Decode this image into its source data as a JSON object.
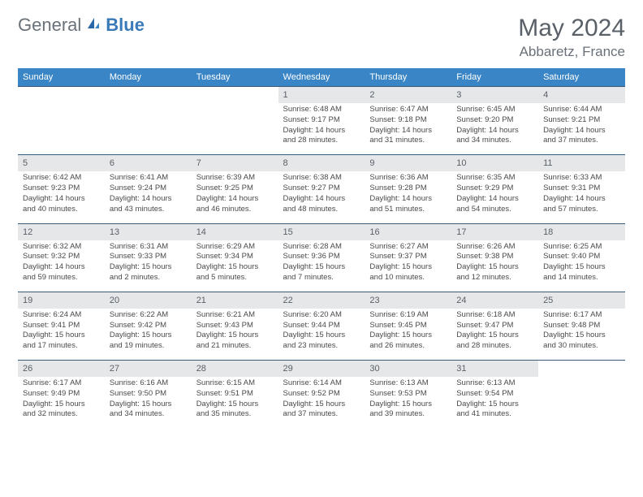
{
  "logo": {
    "general": "General",
    "blue": "Blue"
  },
  "title": "May 2024",
  "location": "Abbaretz, France",
  "daynames": [
    "Sunday",
    "Monday",
    "Tuesday",
    "Wednesday",
    "Thursday",
    "Friday",
    "Saturday"
  ],
  "rows": [
    {
      "nums": [
        "",
        "",
        "",
        "1",
        "2",
        "3",
        "4"
      ],
      "cells": [
        {},
        {},
        {},
        {
          "sr": "Sunrise: 6:48 AM",
          "ss": "Sunset: 9:17 PM",
          "d1": "Daylight: 14 hours",
          "d2": "and 28 minutes."
        },
        {
          "sr": "Sunrise: 6:47 AM",
          "ss": "Sunset: 9:18 PM",
          "d1": "Daylight: 14 hours",
          "d2": "and 31 minutes."
        },
        {
          "sr": "Sunrise: 6:45 AM",
          "ss": "Sunset: 9:20 PM",
          "d1": "Daylight: 14 hours",
          "d2": "and 34 minutes."
        },
        {
          "sr": "Sunrise: 6:44 AM",
          "ss": "Sunset: 9:21 PM",
          "d1": "Daylight: 14 hours",
          "d2": "and 37 minutes."
        }
      ]
    },
    {
      "nums": [
        "5",
        "6",
        "7",
        "8",
        "9",
        "10",
        "11"
      ],
      "cells": [
        {
          "sr": "Sunrise: 6:42 AM",
          "ss": "Sunset: 9:23 PM",
          "d1": "Daylight: 14 hours",
          "d2": "and 40 minutes."
        },
        {
          "sr": "Sunrise: 6:41 AM",
          "ss": "Sunset: 9:24 PM",
          "d1": "Daylight: 14 hours",
          "d2": "and 43 minutes."
        },
        {
          "sr": "Sunrise: 6:39 AM",
          "ss": "Sunset: 9:25 PM",
          "d1": "Daylight: 14 hours",
          "d2": "and 46 minutes."
        },
        {
          "sr": "Sunrise: 6:38 AM",
          "ss": "Sunset: 9:27 PM",
          "d1": "Daylight: 14 hours",
          "d2": "and 48 minutes."
        },
        {
          "sr": "Sunrise: 6:36 AM",
          "ss": "Sunset: 9:28 PM",
          "d1": "Daylight: 14 hours",
          "d2": "and 51 minutes."
        },
        {
          "sr": "Sunrise: 6:35 AM",
          "ss": "Sunset: 9:29 PM",
          "d1": "Daylight: 14 hours",
          "d2": "and 54 minutes."
        },
        {
          "sr": "Sunrise: 6:33 AM",
          "ss": "Sunset: 9:31 PM",
          "d1": "Daylight: 14 hours",
          "d2": "and 57 minutes."
        }
      ]
    },
    {
      "nums": [
        "12",
        "13",
        "14",
        "15",
        "16",
        "17",
        "18"
      ],
      "cells": [
        {
          "sr": "Sunrise: 6:32 AM",
          "ss": "Sunset: 9:32 PM",
          "d1": "Daylight: 14 hours",
          "d2": "and 59 minutes."
        },
        {
          "sr": "Sunrise: 6:31 AM",
          "ss": "Sunset: 9:33 PM",
          "d1": "Daylight: 15 hours",
          "d2": "and 2 minutes."
        },
        {
          "sr": "Sunrise: 6:29 AM",
          "ss": "Sunset: 9:34 PM",
          "d1": "Daylight: 15 hours",
          "d2": "and 5 minutes."
        },
        {
          "sr": "Sunrise: 6:28 AM",
          "ss": "Sunset: 9:36 PM",
          "d1": "Daylight: 15 hours",
          "d2": "and 7 minutes."
        },
        {
          "sr": "Sunrise: 6:27 AM",
          "ss": "Sunset: 9:37 PM",
          "d1": "Daylight: 15 hours",
          "d2": "and 10 minutes."
        },
        {
          "sr": "Sunrise: 6:26 AM",
          "ss": "Sunset: 9:38 PM",
          "d1": "Daylight: 15 hours",
          "d2": "and 12 minutes."
        },
        {
          "sr": "Sunrise: 6:25 AM",
          "ss": "Sunset: 9:40 PM",
          "d1": "Daylight: 15 hours",
          "d2": "and 14 minutes."
        }
      ]
    },
    {
      "nums": [
        "19",
        "20",
        "21",
        "22",
        "23",
        "24",
        "25"
      ],
      "cells": [
        {
          "sr": "Sunrise: 6:24 AM",
          "ss": "Sunset: 9:41 PM",
          "d1": "Daylight: 15 hours",
          "d2": "and 17 minutes."
        },
        {
          "sr": "Sunrise: 6:22 AM",
          "ss": "Sunset: 9:42 PM",
          "d1": "Daylight: 15 hours",
          "d2": "and 19 minutes."
        },
        {
          "sr": "Sunrise: 6:21 AM",
          "ss": "Sunset: 9:43 PM",
          "d1": "Daylight: 15 hours",
          "d2": "and 21 minutes."
        },
        {
          "sr": "Sunrise: 6:20 AM",
          "ss": "Sunset: 9:44 PM",
          "d1": "Daylight: 15 hours",
          "d2": "and 23 minutes."
        },
        {
          "sr": "Sunrise: 6:19 AM",
          "ss": "Sunset: 9:45 PM",
          "d1": "Daylight: 15 hours",
          "d2": "and 26 minutes."
        },
        {
          "sr": "Sunrise: 6:18 AM",
          "ss": "Sunset: 9:47 PM",
          "d1": "Daylight: 15 hours",
          "d2": "and 28 minutes."
        },
        {
          "sr": "Sunrise: 6:17 AM",
          "ss": "Sunset: 9:48 PM",
          "d1": "Daylight: 15 hours",
          "d2": "and 30 minutes."
        }
      ]
    },
    {
      "nums": [
        "26",
        "27",
        "28",
        "29",
        "30",
        "31",
        ""
      ],
      "cells": [
        {
          "sr": "Sunrise: 6:17 AM",
          "ss": "Sunset: 9:49 PM",
          "d1": "Daylight: 15 hours",
          "d2": "and 32 minutes."
        },
        {
          "sr": "Sunrise: 6:16 AM",
          "ss": "Sunset: 9:50 PM",
          "d1": "Daylight: 15 hours",
          "d2": "and 34 minutes."
        },
        {
          "sr": "Sunrise: 6:15 AM",
          "ss": "Sunset: 9:51 PM",
          "d1": "Daylight: 15 hours",
          "d2": "and 35 minutes."
        },
        {
          "sr": "Sunrise: 6:14 AM",
          "ss": "Sunset: 9:52 PM",
          "d1": "Daylight: 15 hours",
          "d2": "and 37 minutes."
        },
        {
          "sr": "Sunrise: 6:13 AM",
          "ss": "Sunset: 9:53 PM",
          "d1": "Daylight: 15 hours",
          "d2": "and 39 minutes."
        },
        {
          "sr": "Sunrise: 6:13 AM",
          "ss": "Sunset: 9:54 PM",
          "d1": "Daylight: 15 hours",
          "d2": "and 41 minutes."
        },
        {}
      ]
    }
  ],
  "colors": {
    "header_bg": "#3a85c6",
    "daynum_bg": "#e6e7e9",
    "row_border": "#3a5a7a",
    "text_gray": "#5a6068"
  }
}
